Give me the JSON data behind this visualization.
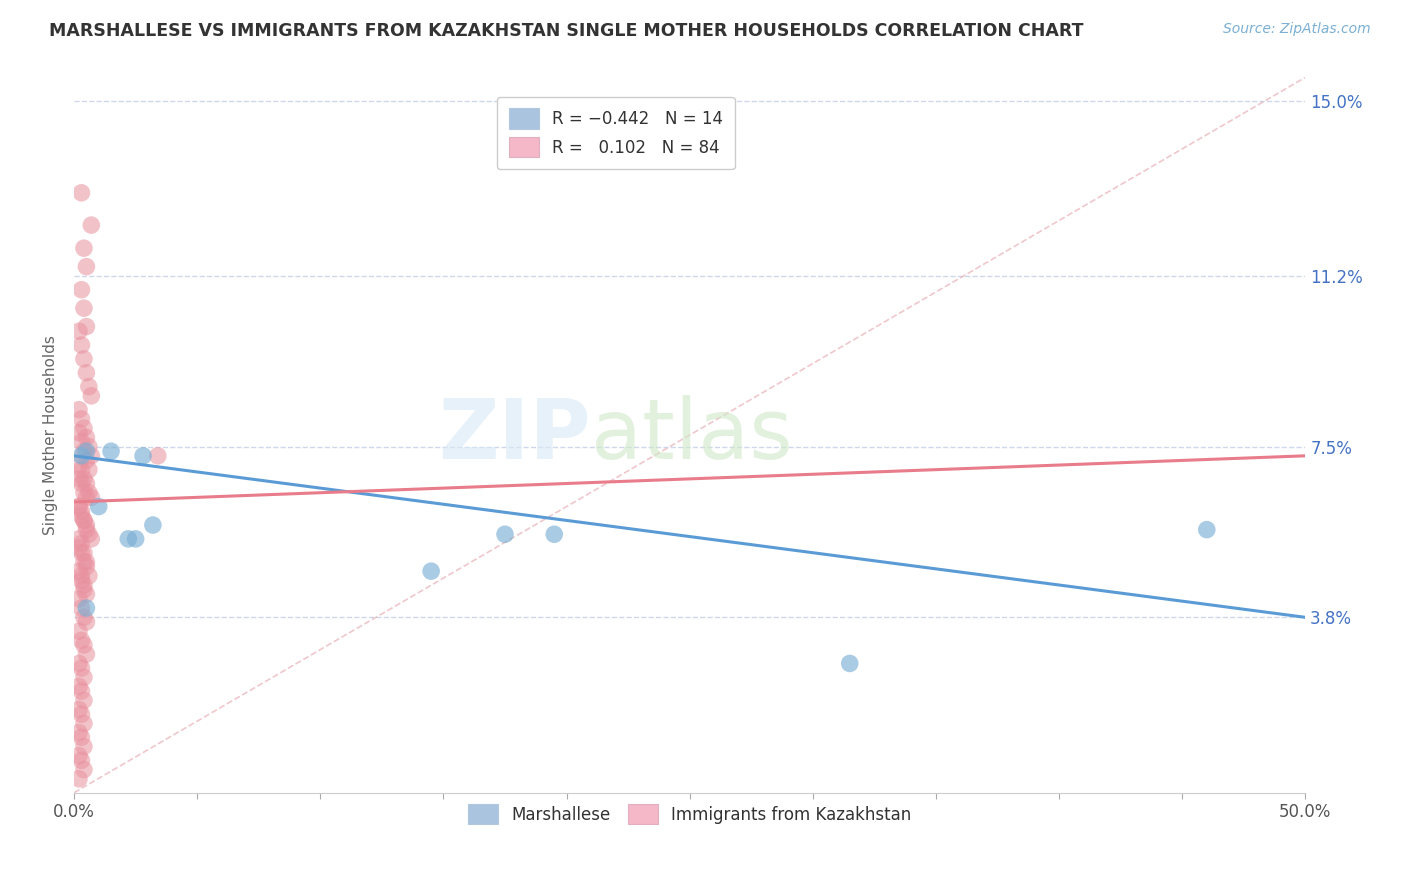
{
  "title": "MARSHALLESE VS IMMIGRANTS FROM KAZAKHSTAN SINGLE MOTHER HOUSEHOLDS CORRELATION CHART",
  "source": "Source: ZipAtlas.com",
  "ylabel": "Single Mother Households",
  "xlim": [
    0.0,
    0.5
  ],
  "ylim": [
    0.0,
    0.155
  ],
  "ytick_positions": [
    0.038,
    0.075,
    0.112,
    0.15
  ],
  "ytick_labels": [
    "3.8%",
    "7.5%",
    "11.2%",
    "15.0%"
  ],
  "legend_bottom": [
    "Marshallese",
    "Immigrants from Kazakhstan"
  ],
  "blue_color": "#7bafd4",
  "pink_color": "#e8919e",
  "blue_fill": "#aac4e0",
  "pink_fill": "#f4b8c8",
  "trendline_blue_color": "#5b9bd5",
  "trendline_pink_color": "#e87c8a",
  "background_color": "#ffffff",
  "grid_color": "#c8d4e8",
  "blue_points_x": [
    0.005,
    0.01,
    0.015,
    0.003,
    0.028,
    0.032,
    0.145,
    0.175,
    0.195,
    0.315,
    0.46,
    0.005,
    0.025,
    0.022
  ],
  "blue_points_y": [
    0.074,
    0.062,
    0.074,
    0.073,
    0.073,
    0.058,
    0.048,
    0.056,
    0.056,
    0.028,
    0.057,
    0.04,
    0.055,
    0.055
  ],
  "pink_points_x": [
    0.003,
    0.007,
    0.004,
    0.005,
    0.003,
    0.004,
    0.005,
    0.002,
    0.003,
    0.004,
    0.005,
    0.006,
    0.007,
    0.002,
    0.003,
    0.004,
    0.005,
    0.006,
    0.007,
    0.002,
    0.003,
    0.004,
    0.005,
    0.006,
    0.007,
    0.002,
    0.003,
    0.004,
    0.005,
    0.006,
    0.007,
    0.002,
    0.003,
    0.004,
    0.005,
    0.006,
    0.002,
    0.003,
    0.004,
    0.005,
    0.006,
    0.002,
    0.003,
    0.004,
    0.005,
    0.002,
    0.003,
    0.004,
    0.005,
    0.002,
    0.003,
    0.004,
    0.005,
    0.002,
    0.003,
    0.004,
    0.005,
    0.002,
    0.003,
    0.004,
    0.005,
    0.002,
    0.003,
    0.004,
    0.005,
    0.002,
    0.003,
    0.004,
    0.002,
    0.003,
    0.004,
    0.002,
    0.003,
    0.004,
    0.002,
    0.003,
    0.004,
    0.002,
    0.003,
    0.004,
    0.002,
    0.003,
    0.004,
    0.034
  ],
  "pink_points_y": [
    0.13,
    0.123,
    0.118,
    0.114,
    0.109,
    0.105,
    0.101,
    0.1,
    0.097,
    0.094,
    0.091,
    0.088,
    0.086,
    0.083,
    0.081,
    0.079,
    0.077,
    0.075,
    0.073,
    0.071,
    0.07,
    0.068,
    0.067,
    0.065,
    0.064,
    0.062,
    0.061,
    0.059,
    0.058,
    0.056,
    0.055,
    0.053,
    0.052,
    0.05,
    0.049,
    0.047,
    0.078,
    0.076,
    0.074,
    0.072,
    0.07,
    0.068,
    0.067,
    0.065,
    0.064,
    0.062,
    0.06,
    0.059,
    0.057,
    0.055,
    0.054,
    0.052,
    0.05,
    0.048,
    0.047,
    0.045,
    0.043,
    0.042,
    0.04,
    0.038,
    0.037,
    0.035,
    0.033,
    0.032,
    0.03,
    0.028,
    0.027,
    0.025,
    0.023,
    0.022,
    0.02,
    0.018,
    0.017,
    0.015,
    0.013,
    0.012,
    0.01,
    0.008,
    0.007,
    0.005,
    0.003,
    0.046,
    0.044,
    0.073
  ],
  "blue_trend_x": [
    0.0,
    0.5
  ],
  "blue_trend_y": [
    0.073,
    0.038
  ],
  "pink_trend_x": [
    0.0,
    0.5
  ],
  "pink_trend_y": [
    0.063,
    0.073
  ],
  "diag_line_x": [
    0.0,
    0.5
  ],
  "diag_line_y": [
    0.0,
    0.155
  ]
}
